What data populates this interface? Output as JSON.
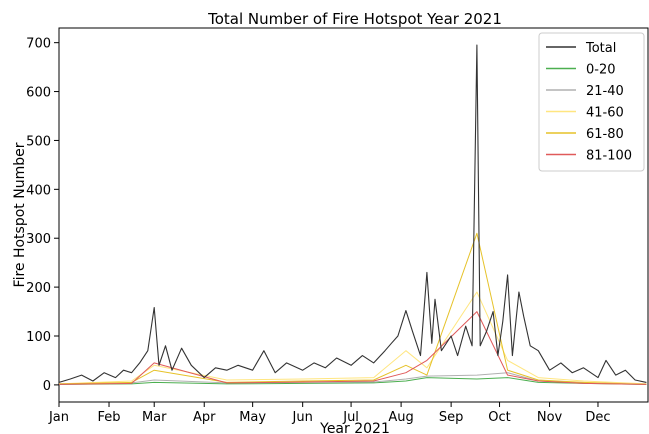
{
  "chart_data": {
    "type": "line",
    "title": "Total Number of Fire Hotspot Year 2021",
    "xlabel": "Year 2021",
    "ylabel": "Fire Hotspot Number",
    "x_range": [
      "2021-01-01",
      "2021-12-31"
    ],
    "ylim": [
      -35,
      730
    ],
    "x_ticks": [
      "Jan",
      "Feb",
      "Mar",
      "Apr",
      "May",
      "Jun",
      "Jul",
      "Aug",
      "Sep",
      "Oct",
      "Nov",
      "Dec"
    ],
    "y_ticks": [
      0,
      100,
      200,
      300,
      400,
      500,
      600,
      700
    ],
    "grid": false,
    "legend_position": "top-right",
    "series": [
      {
        "name": "Total",
        "color": "#333333",
        "points": [
          [
            "2021-01-01",
            5
          ],
          [
            "2021-01-08",
            12
          ],
          [
            "2021-01-15",
            20
          ],
          [
            "2021-01-22",
            8
          ],
          [
            "2021-01-29",
            25
          ],
          [
            "2021-02-05",
            15
          ],
          [
            "2021-02-10",
            30
          ],
          [
            "2021-02-15",
            25
          ],
          [
            "2021-02-20",
            45
          ],
          [
            "2021-02-25",
            70
          ],
          [
            "2021-03-01",
            158
          ],
          [
            "2021-03-04",
            40
          ],
          [
            "2021-03-08",
            80
          ],
          [
            "2021-03-12",
            30
          ],
          [
            "2021-03-18",
            75
          ],
          [
            "2021-03-24",
            40
          ],
          [
            "2021-04-01",
            15
          ],
          [
            "2021-04-08",
            35
          ],
          [
            "2021-04-15",
            30
          ],
          [
            "2021-04-22",
            40
          ],
          [
            "2021-05-01",
            30
          ],
          [
            "2021-05-08",
            70
          ],
          [
            "2021-05-15",
            25
          ],
          [
            "2021-05-22",
            45
          ],
          [
            "2021-06-01",
            30
          ],
          [
            "2021-06-08",
            45
          ],
          [
            "2021-06-15",
            35
          ],
          [
            "2021-06-22",
            55
          ],
          [
            "2021-07-01",
            40
          ],
          [
            "2021-07-08",
            60
          ],
          [
            "2021-07-15",
            45
          ],
          [
            "2021-07-22",
            70
          ],
          [
            "2021-07-26",
            85
          ],
          [
            "2021-07-30",
            100
          ],
          [
            "2021-08-04",
            152
          ],
          [
            "2021-08-08",
            110
          ],
          [
            "2021-08-13",
            60
          ],
          [
            "2021-08-17",
            230
          ],
          [
            "2021-08-20",
            85
          ],
          [
            "2021-08-22",
            175
          ],
          [
            "2021-08-26",
            70
          ],
          [
            "2021-09-01",
            100
          ],
          [
            "2021-09-05",
            60
          ],
          [
            "2021-09-10",
            120
          ],
          [
            "2021-09-14",
            80
          ],
          [
            "2021-09-17",
            695
          ],
          [
            "2021-09-19",
            80
          ],
          [
            "2021-09-23",
            110
          ],
          [
            "2021-09-27",
            150
          ],
          [
            "2021-09-30",
            60
          ],
          [
            "2021-10-03",
            130
          ],
          [
            "2021-10-06",
            225
          ],
          [
            "2021-10-09",
            60
          ],
          [
            "2021-10-13",
            190
          ],
          [
            "2021-10-16",
            140
          ],
          [
            "2021-10-20",
            80
          ],
          [
            "2021-10-25",
            70
          ],
          [
            "2021-11-01",
            30
          ],
          [
            "2021-11-08",
            45
          ],
          [
            "2021-11-15",
            25
          ],
          [
            "2021-11-22",
            35
          ],
          [
            "2021-12-01",
            15
          ],
          [
            "2021-12-06",
            50
          ],
          [
            "2021-12-12",
            20
          ],
          [
            "2021-12-18",
            30
          ],
          [
            "2021-12-24",
            10
          ],
          [
            "2021-12-31",
            5
          ]
        ]
      },
      {
        "name": "0-20",
        "color": "#4caf50",
        "points": [
          [
            "2021-01-01",
            1
          ],
          [
            "2021-02-15",
            2
          ],
          [
            "2021-03-01",
            5
          ],
          [
            "2021-04-15",
            2
          ],
          [
            "2021-06-01",
            3
          ],
          [
            "2021-07-15",
            4
          ],
          [
            "2021-08-04",
            8
          ],
          [
            "2021-08-17",
            15
          ],
          [
            "2021-09-17",
            12
          ],
          [
            "2021-10-06",
            15
          ],
          [
            "2021-10-25",
            5
          ],
          [
            "2021-11-22",
            3
          ],
          [
            "2021-12-31",
            1
          ]
        ]
      },
      {
        "name": "21-40",
        "color": "#b0b0b0",
        "points": [
          [
            "2021-01-01",
            2
          ],
          [
            "2021-02-15",
            4
          ],
          [
            "2021-03-01",
            10
          ],
          [
            "2021-04-15",
            4
          ],
          [
            "2021-06-01",
            5
          ],
          [
            "2021-07-15",
            6
          ],
          [
            "2021-08-04",
            12
          ],
          [
            "2021-08-17",
            18
          ],
          [
            "2021-09-17",
            20
          ],
          [
            "2021-10-06",
            25
          ],
          [
            "2021-10-25",
            8
          ],
          [
            "2021-11-22",
            4
          ],
          [
            "2021-12-31",
            2
          ]
        ]
      },
      {
        "name": "41-60",
        "color": "#ffe680",
        "points": [
          [
            "2021-01-01",
            2
          ],
          [
            "2021-02-15",
            8
          ],
          [
            "2021-03-01",
            40
          ],
          [
            "2021-04-15",
            10
          ],
          [
            "2021-06-01",
            12
          ],
          [
            "2021-07-15",
            15
          ],
          [
            "2021-08-04",
            70
          ],
          [
            "2021-08-17",
            35
          ],
          [
            "2021-09-17",
            190
          ],
          [
            "2021-10-06",
            50
          ],
          [
            "2021-10-25",
            15
          ],
          [
            "2021-11-22",
            8
          ],
          [
            "2021-12-31",
            2
          ]
        ]
      },
      {
        "name": "61-80",
        "color": "#e6c229",
        "points": [
          [
            "2021-01-01",
            2
          ],
          [
            "2021-02-15",
            5
          ],
          [
            "2021-03-01",
            30
          ],
          [
            "2021-04-15",
            5
          ],
          [
            "2021-06-01",
            8
          ],
          [
            "2021-07-15",
            10
          ],
          [
            "2021-08-04",
            40
          ],
          [
            "2021-08-17",
            20
          ],
          [
            "2021-09-17",
            310
          ],
          [
            "2021-10-06",
            30
          ],
          [
            "2021-10-25",
            10
          ],
          [
            "2021-11-22",
            5
          ],
          [
            "2021-12-31",
            1
          ]
        ]
      },
      {
        "name": "81-100",
        "color": "#e05a5a",
        "points": [
          [
            "2021-01-01",
            1
          ],
          [
            "2021-02-15",
            3
          ],
          [
            "2021-03-01",
            45
          ],
          [
            "2021-04-15",
            4
          ],
          [
            "2021-06-01",
            6
          ],
          [
            "2021-07-15",
            8
          ],
          [
            "2021-08-04",
            25
          ],
          [
            "2021-08-17",
            50
          ],
          [
            "2021-09-17",
            150
          ],
          [
            "2021-10-06",
            20
          ],
          [
            "2021-10-25",
            8
          ],
          [
            "2021-11-22",
            3
          ],
          [
            "2021-12-31",
            1
          ]
        ]
      }
    ]
  }
}
